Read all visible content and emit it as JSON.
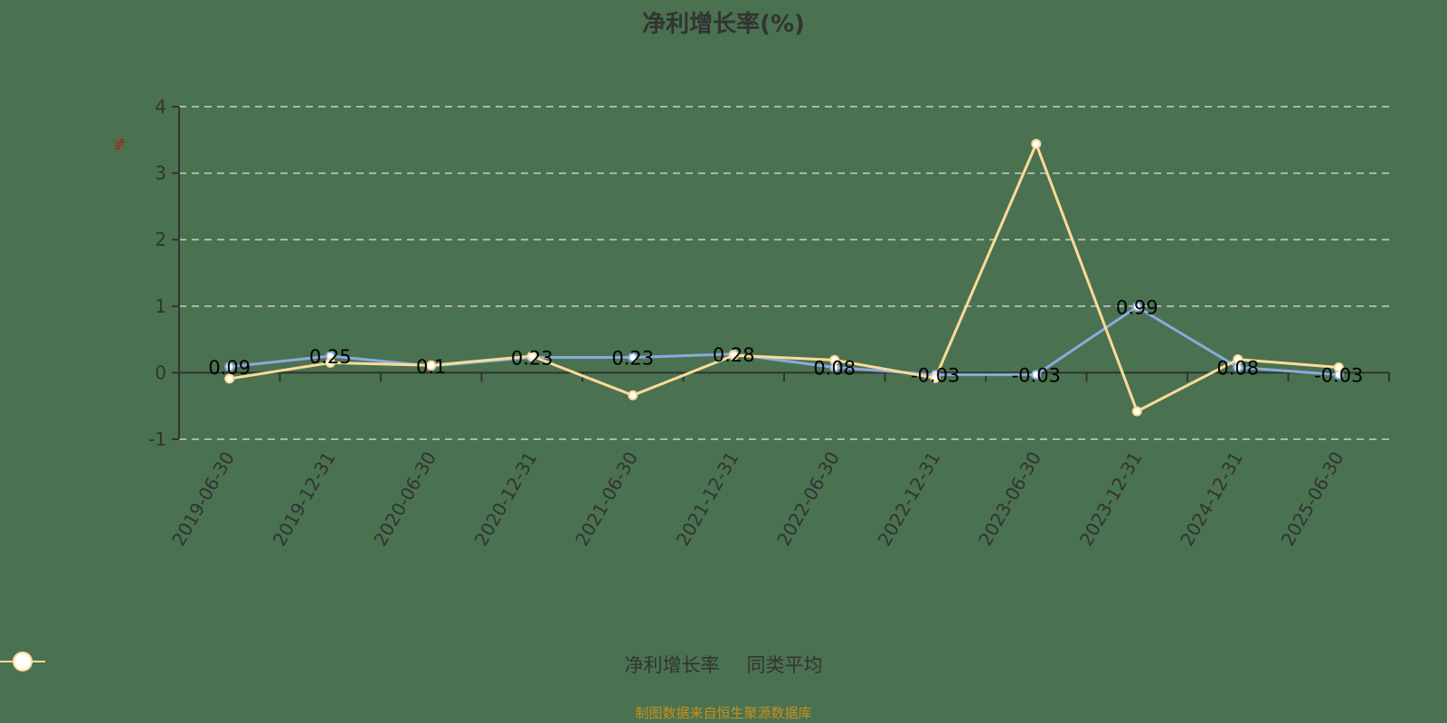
{
  "title": "净利增长率(%)",
  "y_unit": "%",
  "footer": "制图数据来自恒生聚源数据库",
  "legend": [
    {
      "label": "净利增长率",
      "color": "#8aaadd"
    },
    {
      "label": "同类平均",
      "color": "#ffdb99"
    }
  ],
  "chart_data": {
    "type": "line",
    "title": "净利增长率(%)",
    "xlabel": "",
    "ylabel": "%",
    "ylim": [
      -1,
      4
    ],
    "yticks": [
      -1,
      0,
      1,
      2,
      3,
      4
    ],
    "grid": true,
    "legend_position": "bottom",
    "categories": [
      "2019-06-30",
      "2019-12-31",
      "2020-06-30",
      "2020-12-31",
      "2021-06-30",
      "2021-12-31",
      "2022-06-30",
      "2022-12-31",
      "2023-06-30",
      "2023-12-31",
      "2024-12-31",
      "2025-06-30"
    ],
    "series": [
      {
        "name": "净利增长率",
        "color": "#8aaadd",
        "values": [
          0.09,
          0.25,
          0.1,
          0.23,
          0.23,
          0.28,
          0.08,
          -0.03,
          -0.03,
          0.99,
          0.08,
          -0.03
        ],
        "labels": [
          "0.09",
          "0.25",
          "0.1",
          "0.23",
          "0.23",
          "0.28",
          "0.08",
          "-0.03",
          "-0.03",
          "0.99",
          "0.08",
          "-0.03"
        ]
      },
      {
        "name": "同类平均",
        "color": "#ffdb99",
        "values": [
          -0.09,
          0.15,
          0.11,
          0.25,
          -0.34,
          0.26,
          0.19,
          -0.08,
          3.44,
          -0.58,
          0.2,
          0.08
        ]
      }
    ]
  }
}
